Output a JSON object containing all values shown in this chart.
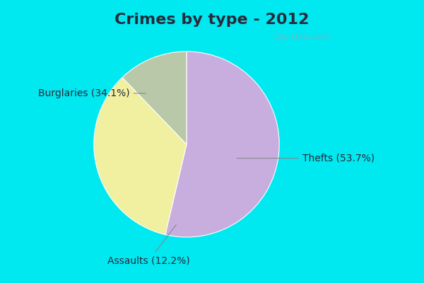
{
  "title": "Crimes by type - 2012",
  "labels": [
    "Thefts",
    "Burglaries",
    "Assaults"
  ],
  "values": [
    53.7,
    34.1,
    12.2
  ],
  "colors": [
    "#c8aede",
    "#f0f0a0",
    "#b8c8a8"
  ],
  "label_texts": [
    "Thefts (53.7%)",
    "Burglaries (34.1%)",
    "Assaults (12.2%)"
  ],
  "border_color": "#00e8f0",
  "bg_color": "#d8f0e8",
  "title_fontsize": 16,
  "label_fontsize": 10,
  "watermark": "City-Data.com",
  "startangle": 90,
  "title_color": "#2a2a3a",
  "label_color": "#2a2a3a",
  "border_width": 8
}
